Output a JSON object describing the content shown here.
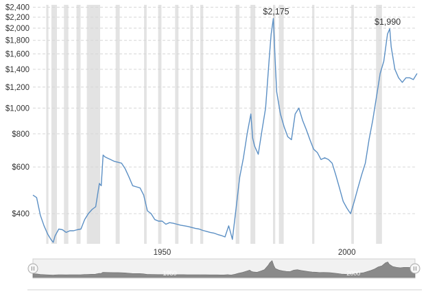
{
  "chart_data": {
    "type": "line",
    "title": "",
    "xlabel": "",
    "ylabel": "",
    "y_scale": "log",
    "xlim": [
      1915,
      2019
    ],
    "ylim": [
      308,
      2450
    ],
    "y_ticks": [
      {
        "value": 2400,
        "label": "$2,400"
      },
      {
        "value": 2200,
        "label": "$2,200"
      },
      {
        "value": 2000,
        "label": "$2,000"
      },
      {
        "value": 1800,
        "label": "$1,800"
      },
      {
        "value": 1600,
        "label": "$1,600"
      },
      {
        "value": 1400,
        "label": "$1,400"
      },
      {
        "value": 1200,
        "label": "$1,200"
      },
      {
        "value": 1000,
        "label": "$1,000"
      },
      {
        "value": 800,
        "label": "$800"
      },
      {
        "value": 600,
        "label": "$600"
      },
      {
        "value": 400,
        "label": "$400"
      }
    ],
    "x_ticks": [
      {
        "value": 1950,
        "label": "1950"
      },
      {
        "value": 2000,
        "label": "2000"
      }
    ],
    "grid": true,
    "color": "#5b8fc4",
    "recessions": [
      [
        1918.6,
        1919.2
      ],
      [
        1920.0,
        1921.5
      ],
      [
        1923.4,
        1924.6
      ],
      [
        1926.8,
        1927.9
      ],
      [
        1929.6,
        1933.2
      ],
      [
        1937.4,
        1938.5
      ],
      [
        1945.1,
        1945.8
      ],
      [
        1948.9,
        1949.8
      ],
      [
        1953.5,
        1954.4
      ],
      [
        1957.6,
        1958.3
      ],
      [
        1960.3,
        1961.1
      ],
      [
        1969.9,
        1970.9
      ],
      [
        1973.9,
        1975.2
      ],
      [
        1980.0,
        1980.6
      ],
      [
        1981.6,
        1982.9
      ],
      [
        1990.6,
        1991.2
      ],
      [
        2001.2,
        2001.9
      ],
      [
        2007.9,
        2009.5
      ]
    ],
    "annotations": [
      {
        "label": "$2,175",
        "x": 1980.1,
        "y": 2175
      },
      {
        "label": "$1,990",
        "x": 2011.6,
        "y": 1990
      }
    ],
    "series": [
      {
        "x": [
          1915.0,
          1916.0,
          1917.0,
          1918.0,
          1919.0,
          1920.0,
          1920.5,
          1921.0,
          1922.0,
          1923.0,
          1924.0,
          1925.0,
          1926.0,
          1927.0,
          1928.0,
          1929.0,
          1930.0,
          1931.0,
          1932.0,
          1933.0,
          1933.5,
          1934.0,
          1934.5,
          1935.0,
          1936.0,
          1937.0,
          1938.0,
          1939.0,
          1940.0,
          1941.0,
          1942.0,
          1943.0,
          1944.0,
          1945.0,
          1946.0,
          1947.0,
          1948.0,
          1949.0,
          1950.0,
          1951.0,
          1952.0,
          1953.0,
          1954.0,
          1955.0,
          1956.0,
          1957.0,
          1958.0,
          1959.0,
          1960.0,
          1961.0,
          1962.0,
          1963.0,
          1964.0,
          1965.0,
          1966.0,
          1967.0,
          1968.0,
          1968.5,
          1969.0,
          1970.0,
          1971.0,
          1972.0,
          1973.0,
          1974.0,
          1974.5,
          1975.0,
          1976.0,
          1977.0,
          1978.0,
          1979.0,
          1979.5,
          1980.1,
          1980.6,
          1981.0,
          1982.0,
          1983.0,
          1984.0,
          1985.0,
          1986.0,
          1987.0,
          1988.0,
          1989.0,
          1990.0,
          1991.0,
          1992.0,
          1993.0,
          1994.0,
          1995.0,
          1996.0,
          1997.0,
          1998.0,
          1999.0,
          2000.0,
          2001.0,
          2002.0,
          2003.0,
          2004.0,
          2005.0,
          2006.0,
          2007.0,
          2008.0,
          2009.0,
          2010.0,
          2011.0,
          2011.6,
          2012.0,
          2013.0,
          2014.0,
          2015.0,
          2016.0,
          2017.0,
          2018.0,
          2019.0
        ],
        "y": [
          470,
          460,
          395,
          360,
          335,
          318,
          312,
          330,
          350,
          348,
          340,
          345,
          345,
          348,
          350,
          380,
          400,
          415,
          425,
          520,
          510,
          665,
          655,
          650,
          640,
          630,
          625,
          620,
          590,
          550,
          510,
          505,
          500,
          470,
          410,
          400,
          380,
          375,
          375,
          365,
          370,
          368,
          365,
          362,
          360,
          358,
          355,
          352,
          350,
          346,
          343,
          340,
          338,
          334,
          331,
          327,
          360,
          340,
          320,
          420,
          550,
          650,
          800,
          950,
          770,
          720,
          670,
          820,
          1000,
          1550,
          1900,
          2175,
          1500,
          1150,
          950,
          850,
          780,
          760,
          950,
          1000,
          900,
          830,
          760,
          700,
          680,
          640,
          650,
          640,
          620,
          560,
          500,
          445,
          420,
          400,
          445,
          500,
          560,
          620,
          760,
          900,
          1100,
          1350,
          1500,
          1900,
          1990,
          1700,
          1400,
          1300,
          1250,
          1300,
          1300,
          1280,
          1350
        ]
      }
    ]
  },
  "navigator": {
    "x_ticks": [
      {
        "value": 1950,
        "label": "1950"
      },
      {
        "value": 2000,
        "label": "2000"
      }
    ]
  }
}
